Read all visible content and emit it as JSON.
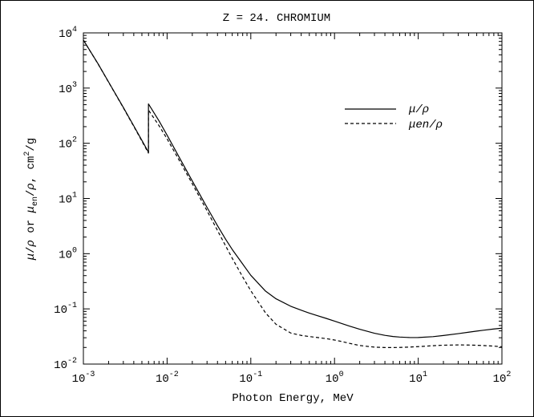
{
  "chart_data": {
    "type": "line",
    "title": "Z = 24.  CHROMIUM",
    "xlabel": "Photon Energy, MeV",
    "ylabel": "μ/ρ or μen/ρ, cm²/g",
    "x_scale": "log",
    "y_scale": "log",
    "xlim": [
      0.001,
      100
    ],
    "ylim": [
      0.01,
      10000
    ],
    "grid": false,
    "legend_position": "top-right",
    "x_ticks": [
      {
        "base": "10",
        "exp": "-3",
        "value": 0.001
      },
      {
        "base": "10",
        "exp": "-2",
        "value": 0.01
      },
      {
        "base": "10",
        "exp": "-1",
        "value": 0.1
      },
      {
        "base": "10",
        "exp": "0",
        "value": 1
      },
      {
        "base": "10",
        "exp": "1",
        "value": 10
      },
      {
        "base": "10",
        "exp": "2",
        "value": 100
      }
    ],
    "y_ticks": [
      {
        "base": "10",
        "exp": "-2",
        "value": 0.01
      },
      {
        "base": "10",
        "exp": "-1",
        "value": 0.1
      },
      {
        "base": "10",
        "exp": "0",
        "value": 1
      },
      {
        "base": "10",
        "exp": "1",
        "value": 10
      },
      {
        "base": "10",
        "exp": "2",
        "value": 100
      },
      {
        "base": "10",
        "exp": "3",
        "value": 1000
      },
      {
        "base": "10",
        "exp": "4",
        "value": 10000
      }
    ],
    "series": [
      {
        "name": "μ/ρ",
        "style": "solid",
        "x": [
          0.001,
          0.0015,
          0.002,
          0.003,
          0.004,
          0.005,
          0.0059892,
          0.0059892,
          0.008,
          0.01,
          0.015,
          0.02,
          0.03,
          0.04,
          0.05,
          0.06,
          0.08,
          0.1,
          0.15,
          0.2,
          0.3,
          0.4,
          0.5,
          0.6,
          0.8,
          1,
          1.25,
          1.5,
          2,
          3,
          4,
          5,
          6,
          8,
          10,
          15,
          20,
          30,
          40,
          50,
          60,
          80,
          100
        ],
        "y": [
          7405,
          2737,
          1289,
          446.6,
          206.4,
          112.7,
          69.0,
          517.0,
          255.1,
          140.2,
          45.72,
          20.77,
          6.89,
          3.214,
          1.827,
          1.191,
          0.6487,
          0.4057,
          0.2097,
          0.1523,
          0.1116,
          0.09445,
          0.08398,
          0.07678,
          0.06705,
          0.05989,
          0.05358,
          0.04894,
          0.04281,
          0.0362,
          0.03316,
          0.0316,
          0.03085,
          0.03024,
          0.03031,
          0.03141,
          0.0329,
          0.03559,
          0.03781,
          0.03955,
          0.04097,
          0.04318,
          0.04468
        ]
      },
      {
        "name": "μen/ρ",
        "style": "dashed",
        "x": [
          0.001,
          0.0015,
          0.002,
          0.003,
          0.004,
          0.005,
          0.0059892,
          0.0059892,
          0.008,
          0.01,
          0.015,
          0.02,
          0.03,
          0.04,
          0.05,
          0.06,
          0.08,
          0.1,
          0.15,
          0.2,
          0.3,
          0.4,
          0.5,
          0.6,
          0.8,
          1,
          1.25,
          1.5,
          2,
          3,
          4,
          5,
          6,
          8,
          10,
          15,
          20,
          30,
          40,
          50,
          60,
          80,
          100
        ],
        "y": [
          7378,
          2721,
          1278,
          440.1,
          201.9,
          109.4,
          66.4,
          399.2,
          209.0,
          120.3,
          40.51,
          18.47,
          6.003,
          2.63,
          1.386,
          0.8261,
          0.3795,
          0.2132,
          0.0845,
          0.05257,
          0.03652,
          0.03304,
          0.03157,
          0.03051,
          0.02887,
          0.02728,
          0.0254,
          0.02381,
          0.02169,
          0.02027,
          0.01993,
          0.01992,
          0.02004,
          0.02035,
          0.0207,
          0.02152,
          0.02199,
          0.02222,
          0.02213,
          0.02192,
          0.02168,
          0.02113,
          0.02058
        ]
      }
    ]
  }
}
